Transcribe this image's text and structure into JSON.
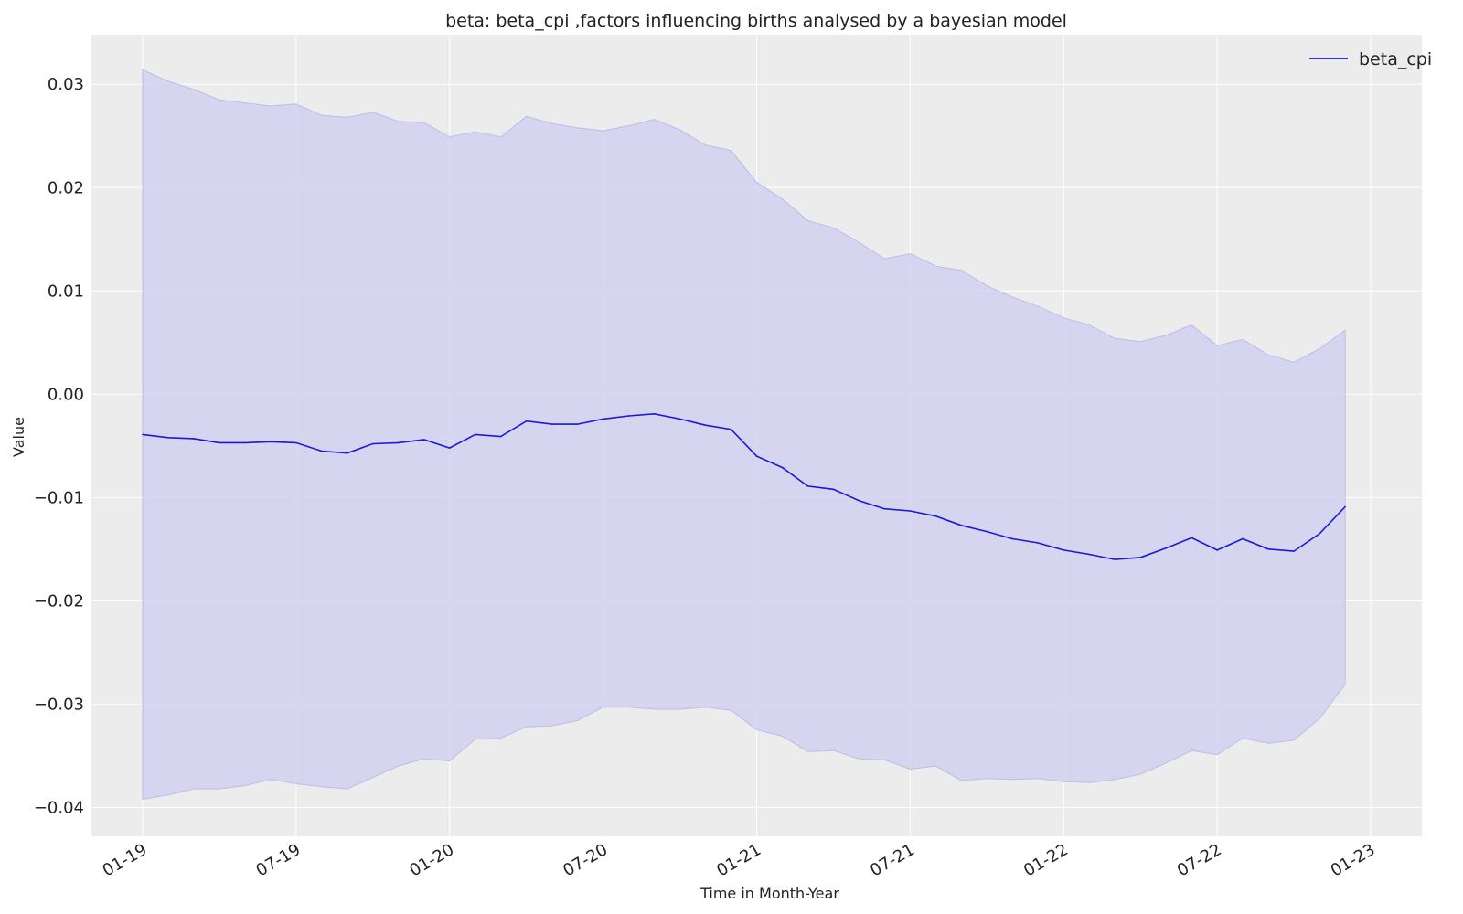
{
  "chart_data": {
    "type": "line",
    "title": "beta: beta_cpi ,factors influencing births analysed by a bayesian model",
    "xlabel": "Time in Month-Year",
    "ylabel": "Value",
    "x_tick_labels": [
      "01-19",
      "07-19",
      "01-20",
      "07-20",
      "01-21",
      "07-21",
      "01-22",
      "07-22",
      "01-23"
    ],
    "y_ticks": [
      -0.04,
      -0.03,
      -0.02,
      -0.01,
      0.0,
      0.01,
      0.02,
      0.03
    ],
    "y_tick_labels": [
      "−0.04",
      "−0.03",
      "−0.02",
      "−0.01",
      "0.00",
      "0.01",
      "0.02",
      "0.03"
    ],
    "ylim": [
      -0.0428,
      0.0348
    ],
    "xlim": [
      "2018-11",
      "2023-03"
    ],
    "grid": true,
    "legend_position": "top-right",
    "band_color": "#cfcff0",
    "line_color": "#1a1ad8",
    "background_color": "#ececec",
    "x": [
      "2019-01",
      "2019-02",
      "2019-03",
      "2019-04",
      "2019-05",
      "2019-06",
      "2019-07",
      "2019-08",
      "2019-09",
      "2019-10",
      "2019-11",
      "2019-12",
      "2020-01",
      "2020-02",
      "2020-03",
      "2020-04",
      "2020-05",
      "2020-06",
      "2020-07",
      "2020-08",
      "2020-09",
      "2020-10",
      "2020-11",
      "2020-12",
      "2021-01",
      "2021-02",
      "2021-03",
      "2021-04",
      "2021-05",
      "2021-06",
      "2021-07",
      "2021-08",
      "2021-09",
      "2021-10",
      "2021-11",
      "2021-12",
      "2022-01",
      "2022-02",
      "2022-03",
      "2022-04",
      "2022-05",
      "2022-06",
      "2022-07",
      "2022-08",
      "2022-09",
      "2022-10",
      "2022-11",
      "2022-12"
    ],
    "series": [
      {
        "name": "beta_cpi",
        "values": [
          -0.0039,
          -0.0042,
          -0.0043,
          -0.0047,
          -0.0047,
          -0.0046,
          -0.0047,
          -0.0055,
          -0.0057,
          -0.0048,
          -0.0047,
          -0.0044,
          -0.0052,
          -0.0039,
          -0.0041,
          -0.0026,
          -0.0029,
          -0.0029,
          -0.0024,
          -0.0021,
          -0.0019,
          -0.0024,
          -0.003,
          -0.0034,
          -0.006,
          -0.0071,
          -0.0089,
          -0.0092,
          -0.0103,
          -0.0111,
          -0.0113,
          -0.0118,
          -0.0127,
          -0.0133,
          -0.014,
          -0.0144,
          -0.0151,
          -0.0155,
          -0.016,
          -0.0158,
          -0.0149,
          -0.0139,
          -0.0151,
          -0.014,
          -0.015,
          -0.0152,
          -0.0135,
          -0.0109
        ],
        "upper": [
          0.0314,
          0.0303,
          0.0295,
          0.0285,
          0.0282,
          0.0279,
          0.0281,
          0.027,
          0.0268,
          0.0273,
          0.0264,
          0.0263,
          0.0249,
          0.0254,
          0.0249,
          0.0269,
          0.0262,
          0.0258,
          0.0255,
          0.026,
          0.0266,
          0.0256,
          0.0241,
          0.0236,
          0.0205,
          0.0189,
          0.0168,
          0.0161,
          0.0147,
          0.0131,
          0.0136,
          0.0124,
          0.012,
          0.0105,
          0.0094,
          0.0085,
          0.0074,
          0.0067,
          0.0054,
          0.0051,
          0.0057,
          0.0067,
          0.0047,
          0.0053,
          0.0038,
          0.0031,
          0.0044,
          0.0062
        ],
        "lower": [
          -0.0392,
          -0.0388,
          -0.0382,
          -0.0382,
          -0.0379,
          -0.0373,
          -0.0377,
          -0.038,
          -0.0382,
          -0.0371,
          -0.036,
          -0.0353,
          -0.0355,
          -0.0334,
          -0.0333,
          -0.0322,
          -0.0321,
          -0.0316,
          -0.0303,
          -0.0303,
          -0.0305,
          -0.0305,
          -0.0303,
          -0.0306,
          -0.0325,
          -0.0331,
          -0.0346,
          -0.0345,
          -0.0353,
          -0.0354,
          -0.0363,
          -0.036,
          -0.0374,
          -0.0372,
          -0.0373,
          -0.0372,
          -0.0375,
          -0.0376,
          -0.0373,
          -0.0368,
          -0.0357,
          -0.0345,
          -0.0349,
          -0.0333,
          -0.0338,
          -0.0335,
          -0.0314,
          -0.0281
        ]
      }
    ]
  }
}
